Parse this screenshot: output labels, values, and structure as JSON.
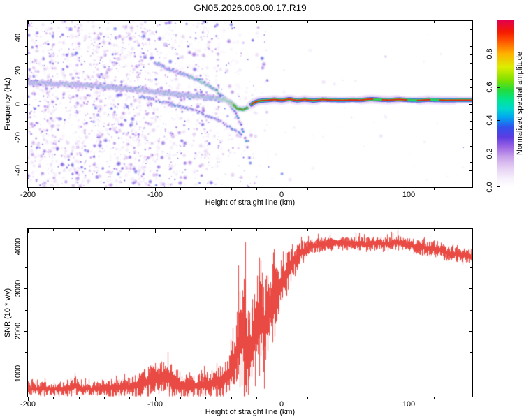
{
  "title": "GN05.2026.008.00.17.R19",
  "chart_data": [
    {
      "type": "heatmap",
      "panel": "spectrogram",
      "xlabel": "Height of straight line (km)",
      "ylabel": "Frequency (Hz)",
      "xlim": [
        -200,
        150
      ],
      "ylim": [
        -50,
        50
      ],
      "xticks_major": [
        -200,
        -100,
        0,
        100
      ],
      "xtick_minor_step": 20,
      "yticks_major": [
        -40,
        -20,
        0,
        20,
        40
      ],
      "ytick_minor_step": 5,
      "colorbar": {
        "label": "Normalized spectral amplitude",
        "ticks": [
          "0.0",
          "0.2",
          "0.4",
          "0.6",
          "0.8"
        ],
        "tick_values": [
          0.0,
          0.2,
          0.4,
          0.6,
          0.8
        ],
        "range": [
          0,
          1
        ],
        "stops": [
          [
            0.0,
            "#ffffff"
          ],
          [
            0.05,
            "#f7f1fc"
          ],
          [
            0.12,
            "#e4cef3"
          ],
          [
            0.18,
            "#c9a3ea"
          ],
          [
            0.24,
            "#9d65e3"
          ],
          [
            0.3,
            "#5d3ce2"
          ],
          [
            0.36,
            "#2f52ec"
          ],
          [
            0.42,
            "#00a8f0"
          ],
          [
            0.47,
            "#00d8cc"
          ],
          [
            0.52,
            "#00e496"
          ],
          [
            0.58,
            "#22dc3c"
          ],
          [
            0.64,
            "#7ce000"
          ],
          [
            0.72,
            "#dcee00"
          ],
          [
            0.8,
            "#ffb000"
          ],
          [
            0.87,
            "#ff5a00"
          ],
          [
            0.93,
            "#f51900"
          ],
          [
            1.0,
            "#e2004e"
          ]
        ]
      },
      "main_trace": [
        [
          -200,
          13
        ],
        [
          -185,
          12.4
        ],
        [
          -170,
          12
        ],
        [
          -155,
          11.4
        ],
        [
          -140,
          10.5
        ],
        [
          -125,
          9.4
        ],
        [
          -110,
          8.2
        ],
        [
          -100,
          7.3
        ],
        [
          -90,
          6.4
        ],
        [
          -80,
          5.6
        ],
        [
          -70,
          4.9
        ],
        [
          -62,
          4.3
        ],
        [
          -55,
          3.7
        ],
        [
          -48,
          3.1
        ],
        [
          -44,
          2.4
        ],
        [
          -40,
          0.6
        ],
        [
          -37,
          -1.6
        ],
        [
          -34,
          -3.1
        ],
        [
          -31,
          -3.3
        ],
        [
          -28,
          -2.6
        ],
        [
          -25,
          -0.9
        ],
        [
          -22,
          0.9
        ],
        [
          -18,
          1.9
        ],
        [
          -12,
          2.3
        ],
        [
          -6,
          2.7
        ],
        [
          0,
          2.3
        ],
        [
          6,
          3.0
        ],
        [
          12,
          2.2
        ],
        [
          18,
          2.7
        ],
        [
          25,
          2.1
        ],
        [
          32,
          2.7
        ],
        [
          40,
          2.4
        ],
        [
          48,
          2.3
        ],
        [
          55,
          2.5
        ],
        [
          62,
          2.4
        ],
        [
          70,
          3.0
        ],
        [
          78,
          2.6
        ],
        [
          85,
          2.4
        ],
        [
          92,
          2.8
        ],
        [
          100,
          2.4
        ],
        [
          108,
          2.2
        ],
        [
          115,
          2.6
        ],
        [
          122,
          2.4
        ],
        [
          130,
          2.3
        ],
        [
          140,
          2.4
        ],
        [
          150,
          2.4
        ]
      ],
      "branch_upper": [
        [
          -100,
          25
        ],
        [
          -90,
          21.5
        ],
        [
          -80,
          18.5
        ],
        [
          -71,
          16
        ],
        [
          -63,
          13.5
        ],
        [
          -56,
          10.5
        ],
        [
          -50,
          7
        ],
        [
          -45,
          3.5
        ],
        [
          -41,
          0
        ],
        [
          -37.5,
          -4
        ],
        [
          -34.5,
          -8.5
        ],
        [
          -32,
          -13
        ],
        [
          -30,
          -17.5
        ],
        [
          -28.2,
          -22
        ],
        [
          -26.8,
          -27
        ],
        [
          -25.6,
          -32
        ],
        [
          -24.6,
          -37
        ]
      ],
      "branch_lower": [
        [
          -112,
          4.5
        ],
        [
          -102,
          2.8
        ],
        [
          -92,
          1
        ],
        [
          -82,
          -1
        ],
        [
          -72,
          -3.2
        ],
        [
          -63,
          -5.8
        ],
        [
          -55,
          -8.2
        ],
        [
          -48,
          -10.8
        ],
        [
          -42,
          -13.5
        ],
        [
          -36,
          -16.5
        ],
        [
          -31,
          -19.5
        ]
      ],
      "noise_region": [
        -200,
        -8
      ],
      "core_gaps": [
        [
          72,
          79
        ],
        [
          99,
          106
        ],
        [
          117,
          124
        ]
      ],
      "halo_bulges": [
        [
          -26,
          28
        ],
        [
          62,
          92
        ],
        [
          108,
          136
        ]
      ],
      "signal_dip": {
        "height_range": [
          -37,
          -27
        ],
        "freq": -3.3
      }
    },
    {
      "type": "line",
      "panel": "snr",
      "xlabel": "Height of straight line (km)",
      "ylabel": "SNR (10 * v/v)",
      "xlim": [
        -200,
        150
      ],
      "ylim": [
        450,
        4410
      ],
      "xticks_major": [
        -200,
        -100,
        0,
        100
      ],
      "xtick_minor_step": 20,
      "yticks_major": [
        1000,
        2000,
        3000,
        4000
      ],
      "ytick_minor_step": 500,
      "line_color": "#e8403a",
      "envelope": [
        [
          -200,
          630,
          160
        ],
        [
          -190,
          640,
          170
        ],
        [
          -180,
          630,
          160
        ],
        [
          -170,
          650,
          190
        ],
        [
          -163,
          700,
          240
        ],
        [
          -158,
          640,
          170
        ],
        [
          -150,
          630,
          160
        ],
        [
          -140,
          650,
          190
        ],
        [
          -130,
          660,
          200
        ],
        [
          -120,
          680,
          230
        ],
        [
          -112,
          740,
          300
        ],
        [
          -104,
          820,
          380
        ],
        [
          -97,
          880,
          420
        ],
        [
          -90,
          900,
          430
        ],
        [
          -84,
          800,
          350
        ],
        [
          -78,
          700,
          280
        ],
        [
          -70,
          690,
          270
        ],
        [
          -63,
          720,
          300
        ],
        [
          -56,
          760,
          330
        ],
        [
          -50,
          800,
          380
        ],
        [
          -45,
          880,
          450
        ],
        [
          -41,
          1000,
          600
        ],
        [
          -38,
          1250,
          850
        ],
        [
          -35,
          1600,
          1150
        ],
        [
          -32,
          2100,
          1600
        ],
        [
          -29,
          1900,
          1500
        ],
        [
          -26,
          1300,
          950
        ],
        [
          -23,
          1700,
          1250
        ],
        [
          -20,
          2100,
          1300
        ],
        [
          -17,
          2350,
          1150
        ],
        [
          -14,
          2000,
          1100
        ],
        [
          -11,
          2500,
          1000
        ],
        [
          -8,
          2700,
          900
        ],
        [
          -5,
          2900,
          750
        ],
        [
          -2,
          3100,
          600
        ],
        [
          1,
          3250,
          550
        ],
        [
          4,
          3400,
          480
        ],
        [
          8,
          3600,
          380
        ],
        [
          12,
          3750,
          300
        ],
        [
          16,
          3880,
          240
        ],
        [
          20,
          3960,
          200
        ],
        [
          26,
          4020,
          180
        ],
        [
          34,
          4060,
          170
        ],
        [
          42,
          4080,
          160
        ],
        [
          50,
          4060,
          160
        ],
        [
          58,
          4080,
          170
        ],
        [
          66,
          4040,
          170
        ],
        [
          74,
          4080,
          160
        ],
        [
          82,
          4060,
          170
        ],
        [
          90,
          4090,
          180
        ],
        [
          98,
          4040,
          170
        ],
        [
          106,
          3990,
          180
        ],
        [
          114,
          3960,
          200
        ],
        [
          122,
          3930,
          210
        ],
        [
          130,
          3850,
          190
        ],
        [
          138,
          3800,
          180
        ],
        [
          144,
          3780,
          170
        ],
        [
          150,
          3760,
          170
        ]
      ],
      "spikes": [
        [
          -29,
          4100
        ],
        [
          91,
          4380
        ]
      ]
    }
  ]
}
